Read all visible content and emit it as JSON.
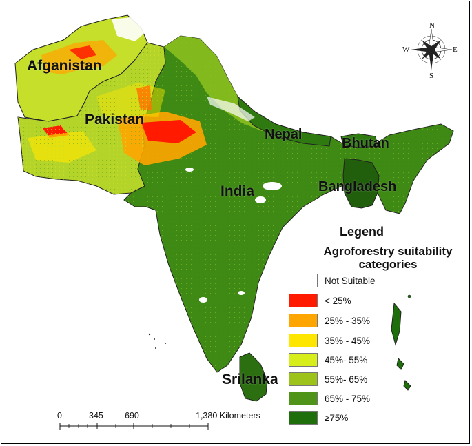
{
  "labels": {
    "afghanistan": "Afganistan",
    "pakistan": "Pakistan",
    "nepal": "Nepal",
    "bhutan": "Bhutan",
    "india": "India",
    "bangladesh": "Bangladesh",
    "srilanka": "Srilanka"
  },
  "legend": {
    "title": "Legend",
    "subtitle_line1": "Agroforestry suitability",
    "subtitle_line2": "categories",
    "items": [
      {
        "label": "Not Suitable",
        "color": "#ffffff"
      },
      {
        "label": "< 25%",
        "color": "#ff1a00"
      },
      {
        "label": "25% - 35%",
        "color": "#ffa500"
      },
      {
        "label": "35% - 45%",
        "color": "#ffe600"
      },
      {
        "label": "45%- 55%",
        "color": "#d8ee1a"
      },
      {
        "label": "55%- 65%",
        "color": "#9dc21a"
      },
      {
        "label": "65% - 75%",
        "color": "#4f9418"
      },
      {
        "label": "≥75%",
        "color": "#1e6e0c"
      }
    ]
  },
  "scale": {
    "tick_0": "0",
    "tick_345": "345",
    "tick_690": "690",
    "tick_1380": "1,380 Kilometers"
  },
  "compass": {
    "n": "N",
    "s": "S",
    "e": "E",
    "w": "W"
  }
}
